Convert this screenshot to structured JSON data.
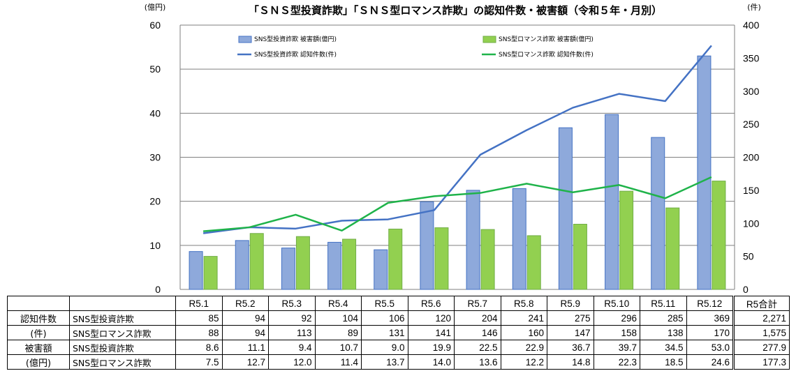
{
  "chart_data": {
    "type": "bar+line",
    "title": "「ＳＮＳ型投資詐欺」「ＳＮＳ型ロマンス詐欺」の認知件数・被害額（令和５年・月別）",
    "y_left_unit": "(億円)",
    "y_right_unit": "(件)",
    "y_left_ticks": [
      "0",
      "10",
      "20",
      "30",
      "40",
      "50",
      "60"
    ],
    "y_right_ticks": [
      "0",
      "50",
      "100",
      "150",
      "200",
      "250",
      "300",
      "350",
      "400"
    ],
    "ylim_left": [
      0,
      60
    ],
    "ylim_right": [
      0,
      400
    ],
    "grid": true,
    "categories": [
      "R5.1",
      "R5.2",
      "R5.3",
      "R5.4",
      "R5.5",
      "R5.6",
      "R5.7",
      "R5.8",
      "R5.9",
      "R5.10",
      "R5.11",
      "R5.12"
    ],
    "series": [
      {
        "name": "SNS型投資詐欺 被害額(億円)",
        "kind": "bar",
        "axis": "left",
        "color": "#8ea9db",
        "border": "#4472c4",
        "values": [
          8.6,
          11.1,
          9.4,
          10.7,
          9.0,
          19.9,
          22.5,
          22.9,
          36.7,
          39.7,
          34.5,
          53.0
        ]
      },
      {
        "name": "SNS型ロマンス詐欺 被害額(億円)",
        "kind": "bar",
        "axis": "left",
        "color": "#92d050",
        "border": "#70ad47",
        "values": [
          7.5,
          12.7,
          12.0,
          11.4,
          13.7,
          14.0,
          13.6,
          12.2,
          14.8,
          22.3,
          18.5,
          24.6
        ]
      },
      {
        "name": "SNS型投資詐欺 認知件数(件)",
        "kind": "line",
        "axis": "right",
        "color": "#4472c4",
        "values": [
          85,
          94,
          92,
          104,
          106,
          120,
          204,
          241,
          275,
          296,
          285,
          369
        ]
      },
      {
        "name": "SNS型ロマンス詐欺 認知件数(件)",
        "kind": "line",
        "axis": "right",
        "color": "#1fb34a",
        "values": [
          88,
          94,
          113,
          89,
          131,
          141,
          146,
          160,
          147,
          158,
          138,
          170
        ]
      }
    ]
  },
  "table": {
    "header": {
      "months": [
        "R5.1",
        "R5.2",
        "R5.3",
        "R5.4",
        "R5.5",
        "R5.6",
        "R5.7",
        "R5.8",
        "R5.9",
        "R5.10",
        "R5.11",
        "R5.12"
      ],
      "total": "R5合計"
    },
    "groups": [
      {
        "label": "認知件数",
        "unit": "(件)",
        "rows": [
          {
            "name": "SNS型投資詐欺",
            "values": [
              "85",
              "94",
              "92",
              "104",
              "106",
              "120",
              "204",
              "241",
              "275",
              "296",
              "285",
              "369"
            ],
            "total": "2,271"
          },
          {
            "name": "SNS型ロマンス詐欺",
            "values": [
              "88",
              "94",
              "113",
              "89",
              "131",
              "141",
              "146",
              "160",
              "147",
              "158",
              "138",
              "170"
            ],
            "total": "1,575"
          }
        ]
      },
      {
        "label": "被害額",
        "unit": "(億円)",
        "rows": [
          {
            "name": "SNS型投資詐欺",
            "values": [
              "8.6",
              "11.1",
              "9.4",
              "10.7",
              "9.0",
              "19.9",
              "22.5",
              "22.9",
              "36.7",
              "39.7",
              "34.5",
              "53.0"
            ],
            "total": "277.9"
          },
          {
            "name": "SNS型ロマンス詐欺",
            "values": [
              "7.5",
              "12.7",
              "12.0",
              "11.4",
              "13.7",
              "14.0",
              "13.6",
              "12.2",
              "14.8",
              "22.3",
              "18.5",
              "24.6"
            ],
            "total": "177.3"
          }
        ]
      }
    ]
  }
}
